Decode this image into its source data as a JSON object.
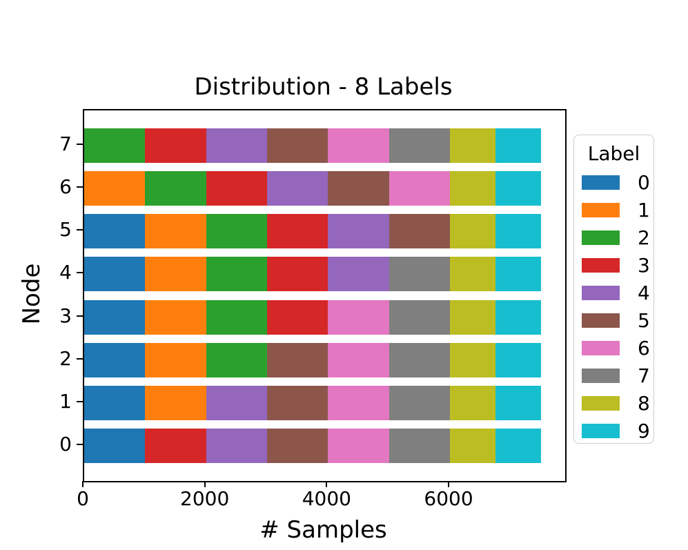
{
  "chart_data": {
    "type": "bar",
    "orientation": "horizontal",
    "stacked": true,
    "title": "Distribution - 8 Labels",
    "xlabel": "# Samples",
    "ylabel": "Node",
    "xlim": [
      0,
      7890
    ],
    "xticks": [
      0,
      2000,
      4000,
      6000
    ],
    "grid": false,
    "legend": {
      "title": "Label",
      "position": "right-outside",
      "entries": [
        {
          "label": "0",
          "color": "#1f77b4"
        },
        {
          "label": "1",
          "color": "#ff7f0e"
        },
        {
          "label": "2",
          "color": "#2ca02c"
        },
        {
          "label": "3",
          "color": "#d62728"
        },
        {
          "label": "4",
          "color": "#9467bd"
        },
        {
          "label": "5",
          "color": "#8c564b"
        },
        {
          "label": "6",
          "color": "#e377c2"
        },
        {
          "label": "7",
          "color": "#7f7f7f"
        },
        {
          "label": "8",
          "color": "#bcbd22"
        },
        {
          "label": "9",
          "color": "#17becf"
        }
      ]
    },
    "rows": [
      {
        "node": "7",
        "segments": [
          {
            "label": "2",
            "value": 1000
          },
          {
            "label": "3",
            "value": 1000
          },
          {
            "label": "4",
            "value": 1000
          },
          {
            "label": "5",
            "value": 1000
          },
          {
            "label": "6",
            "value": 1000
          },
          {
            "label": "7",
            "value": 1000
          },
          {
            "label": "8",
            "value": 750
          },
          {
            "label": "9",
            "value": 750
          }
        ]
      },
      {
        "node": "6",
        "segments": [
          {
            "label": "1",
            "value": 1000
          },
          {
            "label": "2",
            "value": 1000
          },
          {
            "label": "3",
            "value": 1000
          },
          {
            "label": "4",
            "value": 1000
          },
          {
            "label": "5",
            "value": 1000
          },
          {
            "label": "6",
            "value": 1000
          },
          {
            "label": "8",
            "value": 750
          },
          {
            "label": "9",
            "value": 750
          }
        ]
      },
      {
        "node": "5",
        "segments": [
          {
            "label": "0",
            "value": 1000
          },
          {
            "label": "1",
            "value": 1000
          },
          {
            "label": "2",
            "value": 1000
          },
          {
            "label": "3",
            "value": 1000
          },
          {
            "label": "4",
            "value": 1000
          },
          {
            "label": "5",
            "value": 1000
          },
          {
            "label": "8",
            "value": 750
          },
          {
            "label": "9",
            "value": 750
          }
        ]
      },
      {
        "node": "4",
        "segments": [
          {
            "label": "0",
            "value": 1000
          },
          {
            "label": "1",
            "value": 1000
          },
          {
            "label": "2",
            "value": 1000
          },
          {
            "label": "3",
            "value": 1000
          },
          {
            "label": "4",
            "value": 1000
          },
          {
            "label": "7",
            "value": 1000
          },
          {
            "label": "8",
            "value": 750
          },
          {
            "label": "9",
            "value": 750
          }
        ]
      },
      {
        "node": "3",
        "segments": [
          {
            "label": "0",
            "value": 1000
          },
          {
            "label": "1",
            "value": 1000
          },
          {
            "label": "2",
            "value": 1000
          },
          {
            "label": "3",
            "value": 1000
          },
          {
            "label": "6",
            "value": 1000
          },
          {
            "label": "7",
            "value": 1000
          },
          {
            "label": "8",
            "value": 750
          },
          {
            "label": "9",
            "value": 750
          }
        ]
      },
      {
        "node": "2",
        "segments": [
          {
            "label": "0",
            "value": 1000
          },
          {
            "label": "1",
            "value": 1000
          },
          {
            "label": "2",
            "value": 1000
          },
          {
            "label": "5",
            "value": 1000
          },
          {
            "label": "6",
            "value": 1000
          },
          {
            "label": "7",
            "value": 1000
          },
          {
            "label": "8",
            "value": 750
          },
          {
            "label": "9",
            "value": 750
          }
        ]
      },
      {
        "node": "1",
        "segments": [
          {
            "label": "0",
            "value": 1000
          },
          {
            "label": "1",
            "value": 1000
          },
          {
            "label": "4",
            "value": 1000
          },
          {
            "label": "5",
            "value": 1000
          },
          {
            "label": "6",
            "value": 1000
          },
          {
            "label": "7",
            "value": 1000
          },
          {
            "label": "8",
            "value": 750
          },
          {
            "label": "9",
            "value": 750
          }
        ]
      },
      {
        "node": "0",
        "segments": [
          {
            "label": "0",
            "value": 1000
          },
          {
            "label": "3",
            "value": 1000
          },
          {
            "label": "4",
            "value": 1000
          },
          {
            "label": "5",
            "value": 1000
          },
          {
            "label": "6",
            "value": 1000
          },
          {
            "label": "7",
            "value": 1000
          },
          {
            "label": "8",
            "value": 750
          },
          {
            "label": "9",
            "value": 750
          }
        ]
      }
    ]
  }
}
